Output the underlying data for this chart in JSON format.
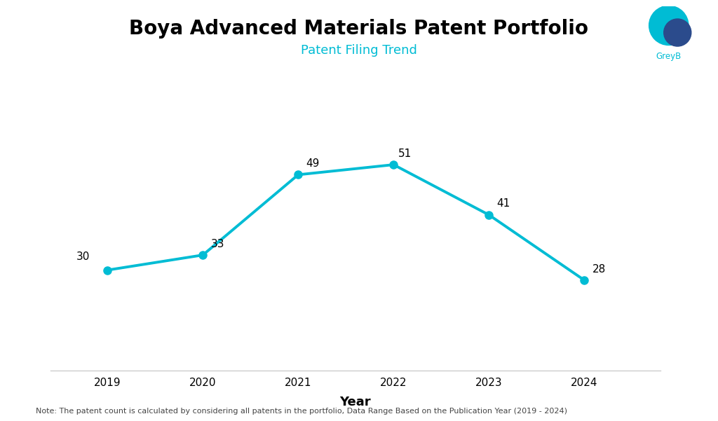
{
  "title": "Boya Advanced Materials Patent Portfolio",
  "subtitle": "Patent Filing Trend",
  "xlabel": "Year",
  "years": [
    2019,
    2020,
    2021,
    2022,
    2023,
    2024
  ],
  "values": [
    30,
    33,
    49,
    51,
    41,
    28
  ],
  "line_color": "#00BCD4",
  "marker_color": "#00BCD4",
  "marker_size": 8,
  "line_width": 2.8,
  "title_fontsize": 20,
  "subtitle_fontsize": 13,
  "annotation_fontsize": 11,
  "xlabel_fontsize": 13,
  "note_text": "Note: The patent count is calculated by considering all patents in the portfolio, Data Range Based on the Publication Year (2019 - 2024)",
  "background_color": "#ffffff",
  "ylim": [
    10,
    62
  ],
  "subtitle_color": "#00BCD4",
  "spine_color": "#cccccc",
  "tick_fontsize": 11,
  "greyb_color": "#00BCD4",
  "logo_teal": "#00BCD4",
  "logo_navy": "#2B4B8C"
}
